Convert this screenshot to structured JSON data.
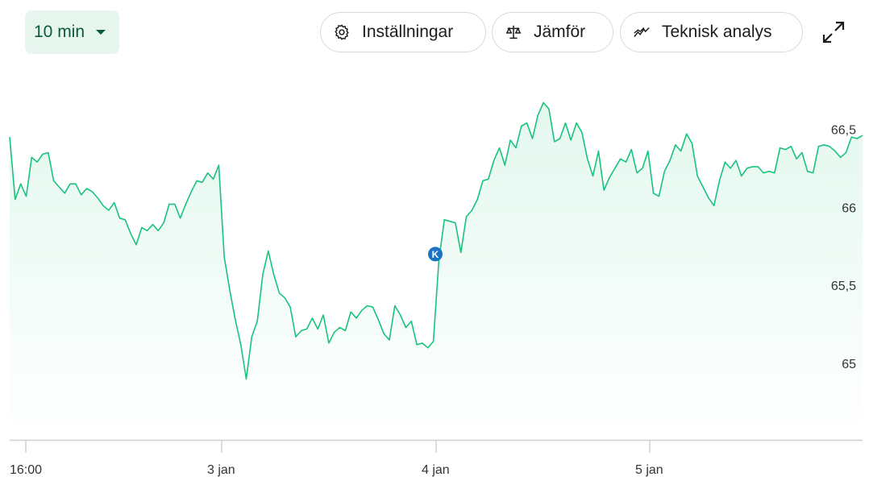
{
  "toolbar": {
    "interval": "10 min",
    "settings_label": "Inställningar",
    "compare_label": "Jämför",
    "ta_label": "Teknisk analys",
    "icons": {
      "interval": "caret-down-icon",
      "settings": "gear-icon",
      "compare": "balance-scale-icon",
      "ta": "trend-line-icon",
      "expand": "expand-icon"
    }
  },
  "colors": {
    "line": "#19c37d",
    "fill": "#e8f8f0",
    "accent": "#0b5a3a",
    "marker": "#1a73c4"
  },
  "chart_data": {
    "type": "area",
    "x_ticks": [
      "16:00",
      "3 jan",
      "4 jan",
      "5 jan"
    ],
    "y_ticks": [
      "65",
      "65,5",
      "66",
      "66,5"
    ],
    "ylim": [
      64.51,
      66.76
    ],
    "grid": false,
    "event_marker": {
      "label": "K",
      "tick": "4 jan",
      "value": 65.7
    },
    "values": [
      66.45,
      66.05,
      66.15,
      66.07,
      66.32,
      66.29,
      66.34,
      66.35,
      66.17,
      66.13,
      66.09,
      66.15,
      66.15,
      66.08,
      66.12,
      66.1,
      66.06,
      66.01,
      65.98,
      66.03,
      65.93,
      65.92,
      65.83,
      65.76,
      65.87,
      65.85,
      65.89,
      65.85,
      65.9,
      66.02,
      66.02,
      65.93,
      66.02,
      66.1,
      66.17,
      66.16,
      66.22,
      66.18,
      66.27,
      65.68,
      65.47,
      65.28,
      65.12,
      64.9,
      65.17,
      65.27,
      65.57,
      65.72,
      65.57,
      65.45,
      65.42,
      65.36,
      65.17,
      65.21,
      65.22,
      65.29,
      65.22,
      65.31,
      65.13,
      65.2,
      65.23,
      65.21,
      65.33,
      65.29,
      65.34,
      65.37,
      65.36,
      65.28,
      65.19,
      65.15,
      65.37,
      65.31,
      65.23,
      65.27,
      65.12,
      65.13,
      65.1,
      65.14,
      65.66,
      65.92,
      65.91,
      65.9,
      65.71,
      65.94,
      65.98,
      66.05,
      66.17,
      66.18,
      66.3,
      66.38,
      66.27,
      66.43,
      66.38,
      66.52,
      66.54,
      66.44,
      66.59,
      66.67,
      66.63,
      66.42,
      66.44,
      66.54,
      66.43,
      66.54,
      66.48,
      66.31,
      66.2,
      66.36,
      66.11,
      66.19,
      66.25,
      66.31,
      66.29,
      66.37,
      66.22,
      66.25,
      66.36,
      66.09,
      66.07,
      66.23,
      66.3,
      66.4,
      66.36,
      66.47,
      66.41,
      66.2,
      66.13,
      66.06,
      66.01,
      66.17,
      66.29,
      66.25,
      66.3,
      66.2,
      66.25,
      66.26,
      66.26,
      66.22,
      66.23,
      66.22,
      66.38,
      66.37,
      66.39,
      66.31,
      66.35,
      66.23,
      66.22,
      66.39,
      66.4,
      66.39,
      66.36,
      66.32,
      66.35,
      66.45,
      66.44,
      66.46
    ]
  }
}
